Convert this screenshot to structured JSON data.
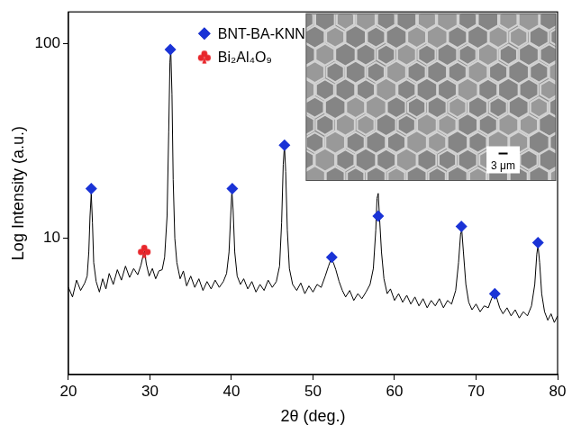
{
  "chart_data": {
    "type": "line",
    "xlabel": "2θ (deg.)",
    "ylabel": "Log Intensity (a.u.)",
    "log": "y",
    "grid": false,
    "legend": "top",
    "xlim": [
      20,
      80
    ],
    "xticks": [
      20,
      30,
      40,
      50,
      60,
      70,
      80
    ],
    "ylim": [
      2,
      145
    ],
    "yticks": [
      10,
      100
    ],
    "inset": {
      "scale_bar": "3 μm"
    },
    "series": [
      {
        "color": "#000000",
        "type": "line",
        "x": [
          20,
          20.5,
          21,
          21.5,
          22,
          22.3,
          22.5,
          22.65,
          22.8,
          22.95,
          23.1,
          23.4,
          23.8,
          24.2,
          24.6,
          25,
          25.5,
          26,
          26.5,
          27,
          27.5,
          28,
          28.5,
          28.9,
          29.2,
          29.35,
          29.55,
          29.9,
          30.3,
          30.7,
          31.1,
          31.5,
          31.8,
          32.1,
          32.3,
          32.45,
          32.55,
          32.7,
          32.85,
          33.05,
          33.3,
          33.7,
          34.1,
          34.5,
          35,
          35.5,
          36,
          36.5,
          37,
          37.5,
          38,
          38.5,
          39,
          39.4,
          39.7,
          39.9,
          40.05,
          40.2,
          40.4,
          40.7,
          41.1,
          41.5,
          42,
          42.5,
          43,
          43.5,
          44,
          44.5,
          45,
          45.5,
          45.9,
          46.15,
          46.35,
          46.5,
          46.65,
          46.85,
          47.1,
          47.5,
          48,
          48.5,
          49,
          49.5,
          50,
          50.5,
          51,
          51.5,
          51.9,
          52.2,
          52.5,
          52.8,
          53.2,
          53.6,
          54,
          54.5,
          55,
          55.5,
          56,
          56.5,
          57,
          57.4,
          57.7,
          57.85,
          58,
          58.15,
          58.4,
          58.7,
          59.1,
          59.5,
          60,
          60.5,
          61,
          61.5,
          62,
          62.5,
          63,
          63.5,
          64,
          64.5,
          65,
          65.5,
          66,
          66.5,
          67,
          67.5,
          67.85,
          68.1,
          68.25,
          68.45,
          68.75,
          69.1,
          69.5,
          70,
          70.5,
          71,
          71.5,
          71.9,
          72.2,
          72.5,
          72.9,
          73.3,
          73.8,
          74.3,
          74.8,
          75.3,
          75.8,
          76.3,
          76.8,
          77.2,
          77.45,
          77.6,
          77.8,
          78.05,
          78.4,
          78.8,
          79.2,
          79.6,
          80
        ],
        "values": [
          5.6,
          5.0,
          6.1,
          5.4,
          5.9,
          6.4,
          8.5,
          13,
          17,
          12,
          7.5,
          6.0,
          5.3,
          6.2,
          5.5,
          6.6,
          5.8,
          6.9,
          6.1,
          7.2,
          6.3,
          7.0,
          6.5,
          7.3,
          8.3,
          8.6,
          7.4,
          6.4,
          7.0,
          6.2,
          6.8,
          6.9,
          8.0,
          13,
          35,
          80,
          94,
          55,
          20,
          10,
          7.5,
          6.2,
          6.8,
          5.7,
          6.4,
          5.6,
          6.2,
          5.4,
          6.0,
          5.5,
          6.1,
          5.6,
          6.0,
          6.6,
          8.5,
          13,
          17.5,
          14,
          8.5,
          6.4,
          5.8,
          6.2,
          5.5,
          6.0,
          5.3,
          5.8,
          5.4,
          6.1,
          5.6,
          6.0,
          7.2,
          12,
          24,
          30,
          22,
          11,
          7.0,
          5.8,
          5.4,
          5.9,
          5.2,
          5.7,
          5.3,
          5.8,
          5.6,
          6.4,
          7.2,
          7.8,
          7.5,
          6.9,
          6.0,
          5.4,
          5.0,
          5.4,
          4.8,
          5.2,
          4.9,
          5.3,
          5.8,
          7.0,
          11,
          16,
          17,
          13,
          8.5,
          6.2,
          5.2,
          5.5,
          4.8,
          5.2,
          4.7,
          5.1,
          4.6,
          5.0,
          4.5,
          4.9,
          4.4,
          4.8,
          4.5,
          4.9,
          4.4,
          4.8,
          4.6,
          5.4,
          7.5,
          10.5,
          11,
          8.5,
          5.8,
          4.7,
          4.3,
          4.6,
          4.2,
          4.5,
          4.4,
          4.9,
          5.2,
          5.0,
          4.4,
          4.1,
          4.4,
          4.0,
          4.3,
          3.9,
          4.2,
          4.0,
          4.5,
          5.8,
          8.3,
          9.2,
          7.5,
          5.2,
          4.2,
          3.8,
          4.1,
          3.7,
          4.0
        ]
      },
      {
        "name": "BNT-BA-KNN",
        "color": "#1a33d6",
        "type": "scatter",
        "marker": "diamond",
        "x": [
          22.8,
          32.5,
          40.1,
          46.5,
          52.3,
          58.0,
          68.2,
          72.3,
          77.6
        ],
        "values": [
          18,
          93,
          18,
          30,
          8,
          13,
          11.5,
          5.2,
          9.5
        ]
      },
      {
        "name": "Bi₂Al₄O₉",
        "color": "#e8262b",
        "type": "scatter",
        "marker": "club",
        "x": [
          29.3
        ],
        "values": [
          8.6
        ]
      }
    ]
  }
}
